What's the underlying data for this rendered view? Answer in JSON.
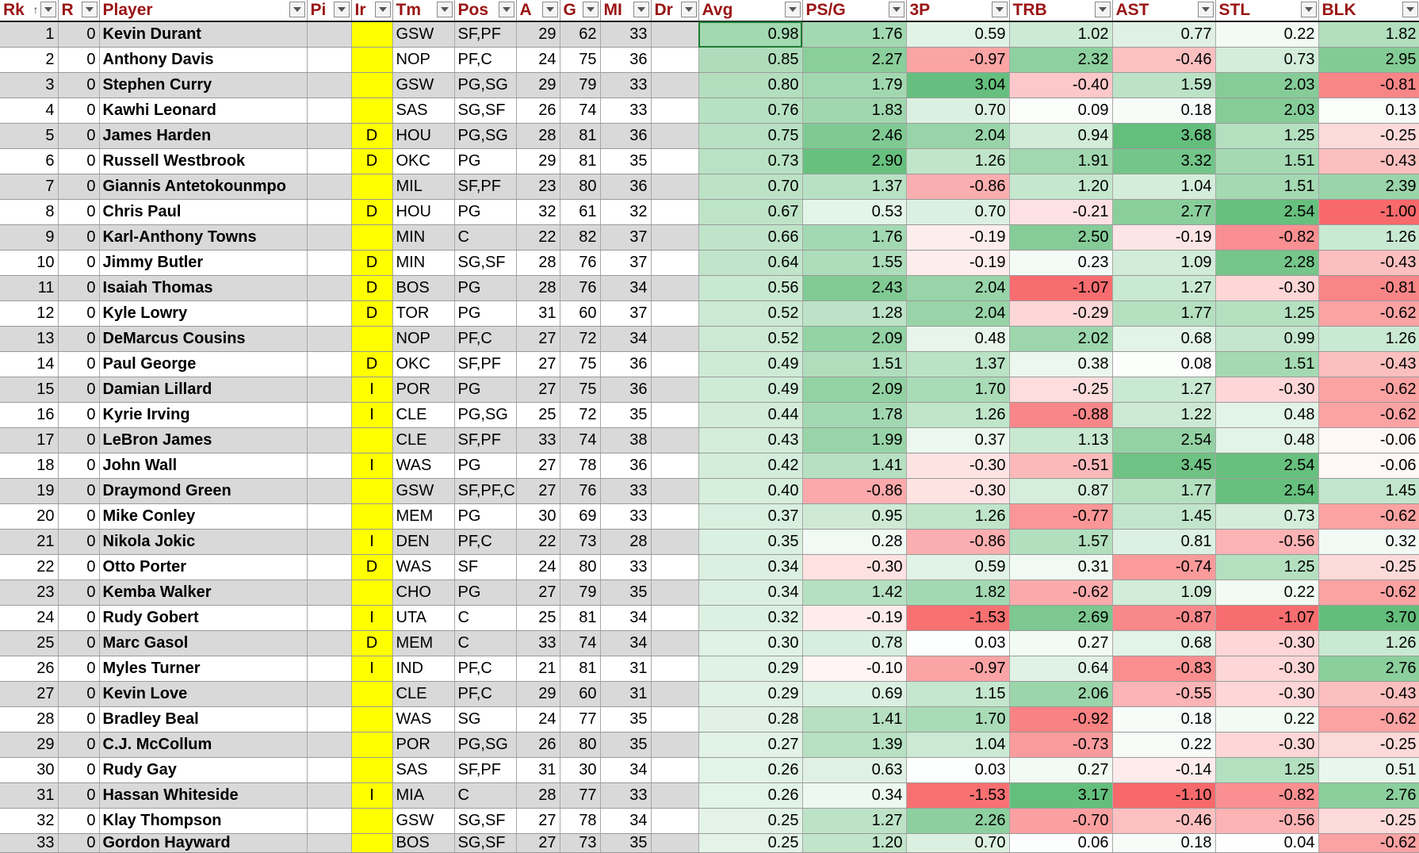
{
  "columns": [
    "Rk",
    "R",
    "Player",
    "Pi",
    "Ir",
    "Tm",
    "Pos",
    "A",
    "G",
    "MI",
    "Dr",
    "Avg",
    "PS/G",
    "3P",
    "TRB",
    "AST",
    "STL",
    "BLK"
  ],
  "colors": {
    "header_text": "#9a1414",
    "injury_fill": "#ffff00",
    "alt_row": "#d9d9d9",
    "positive": "#63be7b",
    "negative": "#f8696b",
    "neutral": "#ffffff"
  },
  "rows": [
    {
      "rk": "1",
      "r": "0",
      "player": "Kevin Durant",
      "inj": "",
      "tm": "GSW",
      "pos": "SF,PF",
      "age": "29",
      "g": "62",
      "mp": "33",
      "avg": "0.98",
      "ps": "1.76",
      "p3": "0.59",
      "trb": "1.02",
      "ast": "0.77",
      "stl": "0.22",
      "blk": "1.82"
    },
    {
      "rk": "2",
      "r": "0",
      "player": "Anthony Davis",
      "inj": "",
      "tm": "NOP",
      "pos": "PF,C",
      "age": "24",
      "g": "75",
      "mp": "36",
      "avg": "0.85",
      "ps": "2.27",
      "p3": "-0.97",
      "trb": "2.32",
      "ast": "-0.46",
      "stl": "0.73",
      "blk": "2.95"
    },
    {
      "rk": "3",
      "r": "0",
      "player": "Stephen Curry",
      "inj": "",
      "tm": "GSW",
      "pos": "PG,SG",
      "age": "29",
      "g": "79",
      "mp": "33",
      "avg": "0.80",
      "ps": "1.79",
      "p3": "3.04",
      "trb": "-0.40",
      "ast": "1.59",
      "stl": "2.03",
      "blk": "-0.81"
    },
    {
      "rk": "4",
      "r": "0",
      "player": "Kawhi Leonard",
      "inj": "",
      "tm": "SAS",
      "pos": "SG,SF",
      "age": "26",
      "g": "74",
      "mp": "33",
      "avg": "0.76",
      "ps": "1.83",
      "p3": "0.70",
      "trb": "0.09",
      "ast": "0.18",
      "stl": "2.03",
      "blk": "0.13"
    },
    {
      "rk": "5",
      "r": "0",
      "player": "James Harden",
      "inj": "D",
      "tm": "HOU",
      "pos": "PG,SG",
      "age": "28",
      "g": "81",
      "mp": "36",
      "avg": "0.75",
      "ps": "2.46",
      "p3": "2.04",
      "trb": "0.94",
      "ast": "3.68",
      "stl": "1.25",
      "blk": "-0.25"
    },
    {
      "rk": "6",
      "r": "0",
      "player": "Russell Westbrook",
      "inj": "D",
      "tm": "OKC",
      "pos": "PG",
      "age": "29",
      "g": "81",
      "mp": "35",
      "avg": "0.73",
      "ps": "2.90",
      "p3": "1.26",
      "trb": "1.91",
      "ast": "3.32",
      "stl": "1.51",
      "blk": "-0.43"
    },
    {
      "rk": "7",
      "r": "0",
      "player": "Giannis Antetokounmpo",
      "inj": "",
      "tm": "MIL",
      "pos": "SF,PF",
      "age": "23",
      "g": "80",
      "mp": "36",
      "avg": "0.70",
      "ps": "1.37",
      "p3": "-0.86",
      "trb": "1.20",
      "ast": "1.04",
      "stl": "1.51",
      "blk": "2.39"
    },
    {
      "rk": "8",
      "r": "0",
      "player": "Chris Paul",
      "inj": "D",
      "tm": "HOU",
      "pos": "PG",
      "age": "32",
      "g": "61",
      "mp": "32",
      "avg": "0.67",
      "ps": "0.53",
      "p3": "0.70",
      "trb": "-0.21",
      "ast": "2.77",
      "stl": "2.54",
      "blk": "-1.00"
    },
    {
      "rk": "9",
      "r": "0",
      "player": "Karl-Anthony Towns",
      "inj": "",
      "tm": "MIN",
      "pos": "C",
      "age": "22",
      "g": "82",
      "mp": "37",
      "avg": "0.66",
      "ps": "1.76",
      "p3": "-0.19",
      "trb": "2.50",
      "ast": "-0.19",
      "stl": "-0.82",
      "blk": "1.26"
    },
    {
      "rk": "10",
      "r": "0",
      "player": "Jimmy Butler",
      "inj": "D",
      "tm": "MIN",
      "pos": "SG,SF",
      "age": "28",
      "g": "76",
      "mp": "37",
      "avg": "0.64",
      "ps": "1.55",
      "p3": "-0.19",
      "trb": "0.23",
      "ast": "1.09",
      "stl": "2.28",
      "blk": "-0.43"
    },
    {
      "rk": "11",
      "r": "0",
      "player": "Isaiah Thomas",
      "inj": "D",
      "tm": "BOS",
      "pos": "PG",
      "age": "28",
      "g": "76",
      "mp": "34",
      "avg": "0.56",
      "ps": "2.43",
      "p3": "2.04",
      "trb": "-1.07",
      "ast": "1.27",
      "stl": "-0.30",
      "blk": "-0.81"
    },
    {
      "rk": "12",
      "r": "0",
      "player": "Kyle Lowry",
      "inj": "D",
      "tm": "TOR",
      "pos": "PG",
      "age": "31",
      "g": "60",
      "mp": "37",
      "avg": "0.52",
      "ps": "1.28",
      "p3": "2.04",
      "trb": "-0.29",
      "ast": "1.77",
      "stl": "1.25",
      "blk": "-0.62"
    },
    {
      "rk": "13",
      "r": "0",
      "player": "DeMarcus Cousins",
      "inj": "",
      "tm": "NOP",
      "pos": "PF,C",
      "age": "27",
      "g": "72",
      "mp": "34",
      "avg": "0.52",
      "ps": "2.09",
      "p3": "0.48",
      "trb": "2.02",
      "ast": "0.68",
      "stl": "0.99",
      "blk": "1.26"
    },
    {
      "rk": "14",
      "r": "0",
      "player": "Paul George",
      "inj": "D",
      "tm": "OKC",
      "pos": "SF,PF",
      "age": "27",
      "g": "75",
      "mp": "36",
      "avg": "0.49",
      "ps": "1.51",
      "p3": "1.37",
      "trb": "0.38",
      "ast": "0.08",
      "stl": "1.51",
      "blk": "-0.43"
    },
    {
      "rk": "15",
      "r": "0",
      "player": "Damian Lillard",
      "inj": "I",
      "tm": "POR",
      "pos": "PG",
      "age": "27",
      "g": "75",
      "mp": "36",
      "avg": "0.49",
      "ps": "2.09",
      "p3": "1.70",
      "trb": "-0.25",
      "ast": "1.27",
      "stl": "-0.30",
      "blk": "-0.62"
    },
    {
      "rk": "16",
      "r": "0",
      "player": "Kyrie Irving",
      "inj": "I",
      "tm": "CLE",
      "pos": "PG,SG",
      "age": "25",
      "g": "72",
      "mp": "35",
      "avg": "0.44",
      "ps": "1.78",
      "p3": "1.26",
      "trb": "-0.88",
      "ast": "1.22",
      "stl": "0.48",
      "blk": "-0.62"
    },
    {
      "rk": "17",
      "r": "0",
      "player": "LeBron James",
      "inj": "",
      "tm": "CLE",
      "pos": "SF,PF",
      "age": "33",
      "g": "74",
      "mp": "38",
      "avg": "0.43",
      "ps": "1.99",
      "p3": "0.37",
      "trb": "1.13",
      "ast": "2.54",
      "stl": "0.48",
      "blk": "-0.06"
    },
    {
      "rk": "18",
      "r": "0",
      "player": "John Wall",
      "inj": "I",
      "tm": "WAS",
      "pos": "PG",
      "age": "27",
      "g": "78",
      "mp": "36",
      "avg": "0.42",
      "ps": "1.41",
      "p3": "-0.30",
      "trb": "-0.51",
      "ast": "3.45",
      "stl": "2.54",
      "blk": "-0.06"
    },
    {
      "rk": "19",
      "r": "0",
      "player": "Draymond Green",
      "inj": "",
      "tm": "GSW",
      "pos": "SF,PF,C",
      "age": "27",
      "g": "76",
      "mp": "33",
      "avg": "0.40",
      "ps": "-0.86",
      "p3": "-0.30",
      "trb": "0.87",
      "ast": "1.77",
      "stl": "2.54",
      "blk": "1.45"
    },
    {
      "rk": "20",
      "r": "0",
      "player": "Mike Conley",
      "inj": "",
      "tm": "MEM",
      "pos": "PG",
      "age": "30",
      "g": "69",
      "mp": "33",
      "avg": "0.37",
      "ps": "0.95",
      "p3": "1.26",
      "trb": "-0.77",
      "ast": "1.45",
      "stl": "0.73",
      "blk": "-0.62"
    },
    {
      "rk": "21",
      "r": "0",
      "player": "Nikola Jokic",
      "inj": "I",
      "tm": "DEN",
      "pos": "PF,C",
      "age": "22",
      "g": "73",
      "mp": "28",
      "avg": "0.35",
      "ps": "0.28",
      "p3": "-0.86",
      "trb": "1.57",
      "ast": "0.81",
      "stl": "-0.56",
      "blk": "0.32"
    },
    {
      "rk": "22",
      "r": "0",
      "player": "Otto Porter",
      "inj": "D",
      "tm": "WAS",
      "pos": "SF",
      "age": "24",
      "g": "80",
      "mp": "33",
      "avg": "0.34",
      "ps": "-0.30",
      "p3": "0.59",
      "trb": "0.31",
      "ast": "-0.74",
      "stl": "1.25",
      "blk": "-0.25"
    },
    {
      "rk": "23",
      "r": "0",
      "player": "Kemba Walker",
      "inj": "",
      "tm": "CHO",
      "pos": "PG",
      "age": "27",
      "g": "79",
      "mp": "35",
      "avg": "0.34",
      "ps": "1.42",
      "p3": "1.82",
      "trb": "-0.62",
      "ast": "1.09",
      "stl": "0.22",
      "blk": "-0.62"
    },
    {
      "rk": "24",
      "r": "0",
      "player": "Rudy Gobert",
      "inj": "I",
      "tm": "UTA",
      "pos": "C",
      "age": "25",
      "g": "81",
      "mp": "34",
      "avg": "0.32",
      "ps": "-0.19",
      "p3": "-1.53",
      "trb": "2.69",
      "ast": "-0.87",
      "stl": "-1.07",
      "blk": "3.70"
    },
    {
      "rk": "25",
      "r": "0",
      "player": "Marc Gasol",
      "inj": "D",
      "tm": "MEM",
      "pos": "C",
      "age": "33",
      "g": "74",
      "mp": "34",
      "avg": "0.30",
      "ps": "0.78",
      "p3": "0.03",
      "trb": "0.27",
      "ast": "0.68",
      "stl": "-0.30",
      "blk": "1.26"
    },
    {
      "rk": "26",
      "r": "0",
      "player": "Myles Turner",
      "inj": "I",
      "tm": "IND",
      "pos": "PF,C",
      "age": "21",
      "g": "81",
      "mp": "31",
      "avg": "0.29",
      "ps": "-0.10",
      "p3": "-0.97",
      "trb": "0.64",
      "ast": "-0.83",
      "stl": "-0.30",
      "blk": "2.76"
    },
    {
      "rk": "27",
      "r": "0",
      "player": "Kevin Love",
      "inj": "",
      "tm": "CLE",
      "pos": "PF,C",
      "age": "29",
      "g": "60",
      "mp": "31",
      "avg": "0.29",
      "ps": "0.69",
      "p3": "1.15",
      "trb": "2.06",
      "ast": "-0.55",
      "stl": "-0.30",
      "blk": "-0.43"
    },
    {
      "rk": "28",
      "r": "0",
      "player": "Bradley Beal",
      "inj": "",
      "tm": "WAS",
      "pos": "SG",
      "age": "24",
      "g": "77",
      "mp": "35",
      "avg": "0.28",
      "ps": "1.41",
      "p3": "1.70",
      "trb": "-0.92",
      "ast": "0.18",
      "stl": "0.22",
      "blk": "-0.62"
    },
    {
      "rk": "29",
      "r": "0",
      "player": "C.J. McCollum",
      "inj": "",
      "tm": "POR",
      "pos": "PG,SG",
      "age": "26",
      "g": "80",
      "mp": "35",
      "avg": "0.27",
      "ps": "1.39",
      "p3": "1.04",
      "trb": "-0.73",
      "ast": "0.22",
      "stl": "-0.30",
      "blk": "-0.25"
    },
    {
      "rk": "30",
      "r": "0",
      "player": "Rudy Gay",
      "inj": "",
      "tm": "SAS",
      "pos": "SF,PF",
      "age": "31",
      "g": "30",
      "mp": "34",
      "avg": "0.26",
      "ps": "0.63",
      "p3": "0.03",
      "trb": "0.27",
      "ast": "-0.14",
      "stl": "1.25",
      "blk": "0.51"
    },
    {
      "rk": "31",
      "r": "0",
      "player": "Hassan Whiteside",
      "inj": "I",
      "tm": "MIA",
      "pos": "C",
      "age": "28",
      "g": "77",
      "mp": "33",
      "avg": "0.26",
      "ps": "0.34",
      "p3": "-1.53",
      "trb": "3.17",
      "ast": "-1.10",
      "stl": "-0.82",
      "blk": "2.76"
    },
    {
      "rk": "32",
      "r": "0",
      "player": "Klay Thompson",
      "inj": "",
      "tm": "GSW",
      "pos": "SG,SF",
      "age": "27",
      "g": "78",
      "mp": "34",
      "avg": "0.25",
      "ps": "1.27",
      "p3": "2.26",
      "trb": "-0.70",
      "ast": "-0.46",
      "stl": "-0.56",
      "blk": "-0.25"
    },
    {
      "rk": "33",
      "r": "0",
      "player": "Gordon Hayward",
      "inj": "",
      "tm": "BOS",
      "pos": "SG,SF",
      "age": "27",
      "g": "73",
      "mp": "35",
      "avg": "0.25",
      "ps": "1.20",
      "p3": "0.70",
      "trb": "0.06",
      "ast": "0.18",
      "stl": "0.04",
      "blk": "-0.62"
    }
  ]
}
